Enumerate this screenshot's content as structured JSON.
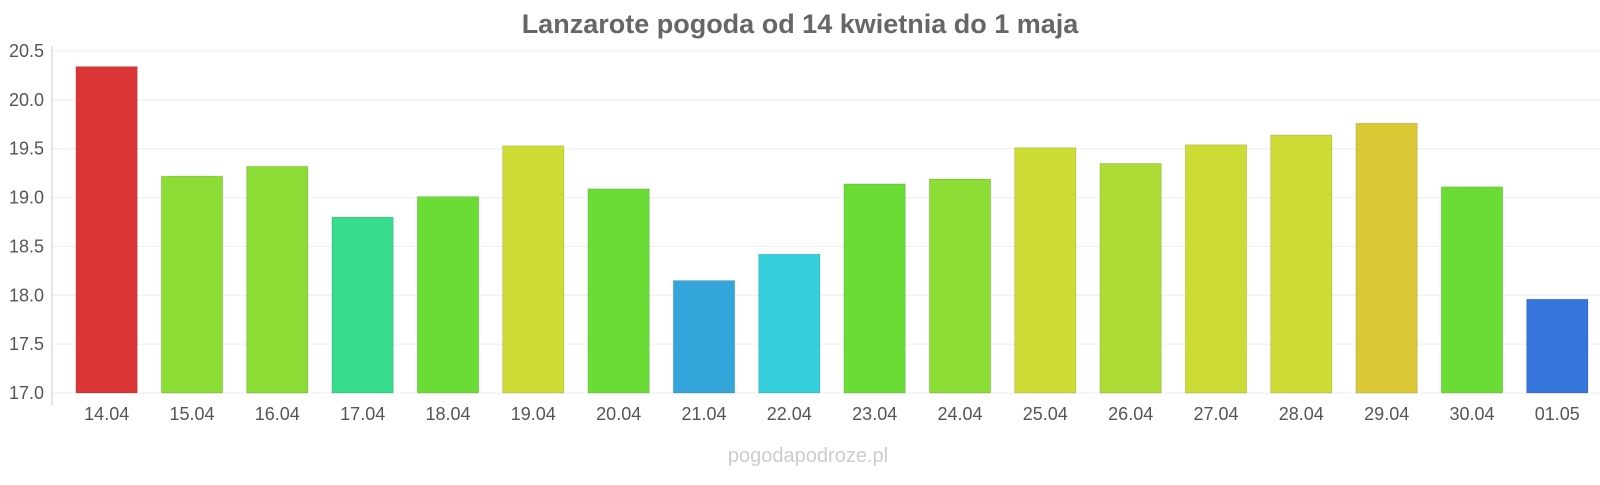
{
  "chart_data": {
    "type": "bar",
    "title": "Lanzarote pogoda od 14 kwietnia do 1 maja",
    "xlabel": "",
    "ylabel": "",
    "ylim": [
      17.0,
      20.5
    ],
    "yticks": [
      "17.0",
      "17.5",
      "18.0",
      "18.5",
      "19.0",
      "19.5",
      "20.0",
      "20.5"
    ],
    "grid": true,
    "categories": [
      "14.04",
      "15.04",
      "16.04",
      "17.04",
      "18.04",
      "19.04",
      "20.04",
      "21.04",
      "22.04",
      "23.04",
      "24.04",
      "25.04",
      "26.04",
      "27.04",
      "28.04",
      "29.04",
      "30.04",
      "01.05"
    ],
    "values": [
      20.34,
      19.22,
      19.32,
      18.8,
      19.01,
      19.53,
      19.09,
      18.15,
      18.42,
      19.14,
      19.19,
      19.51,
      19.35,
      19.54,
      19.64,
      19.76,
      19.11,
      17.96
    ],
    "colors": [
      "#dc3535",
      "#8bdc35",
      "#8bdc35",
      "#35dc8b",
      "#6adc35",
      "#cddc35",
      "#6adc35",
      "#35a6dc",
      "#35cedc",
      "#6adc35",
      "#8bdc35",
      "#cddc35",
      "#acdc35",
      "#cddc35",
      "#cddc35",
      "#dcc835",
      "#6adc35",
      "#3575dc"
    ]
  },
  "watermark": "pogodapodroze.pl"
}
